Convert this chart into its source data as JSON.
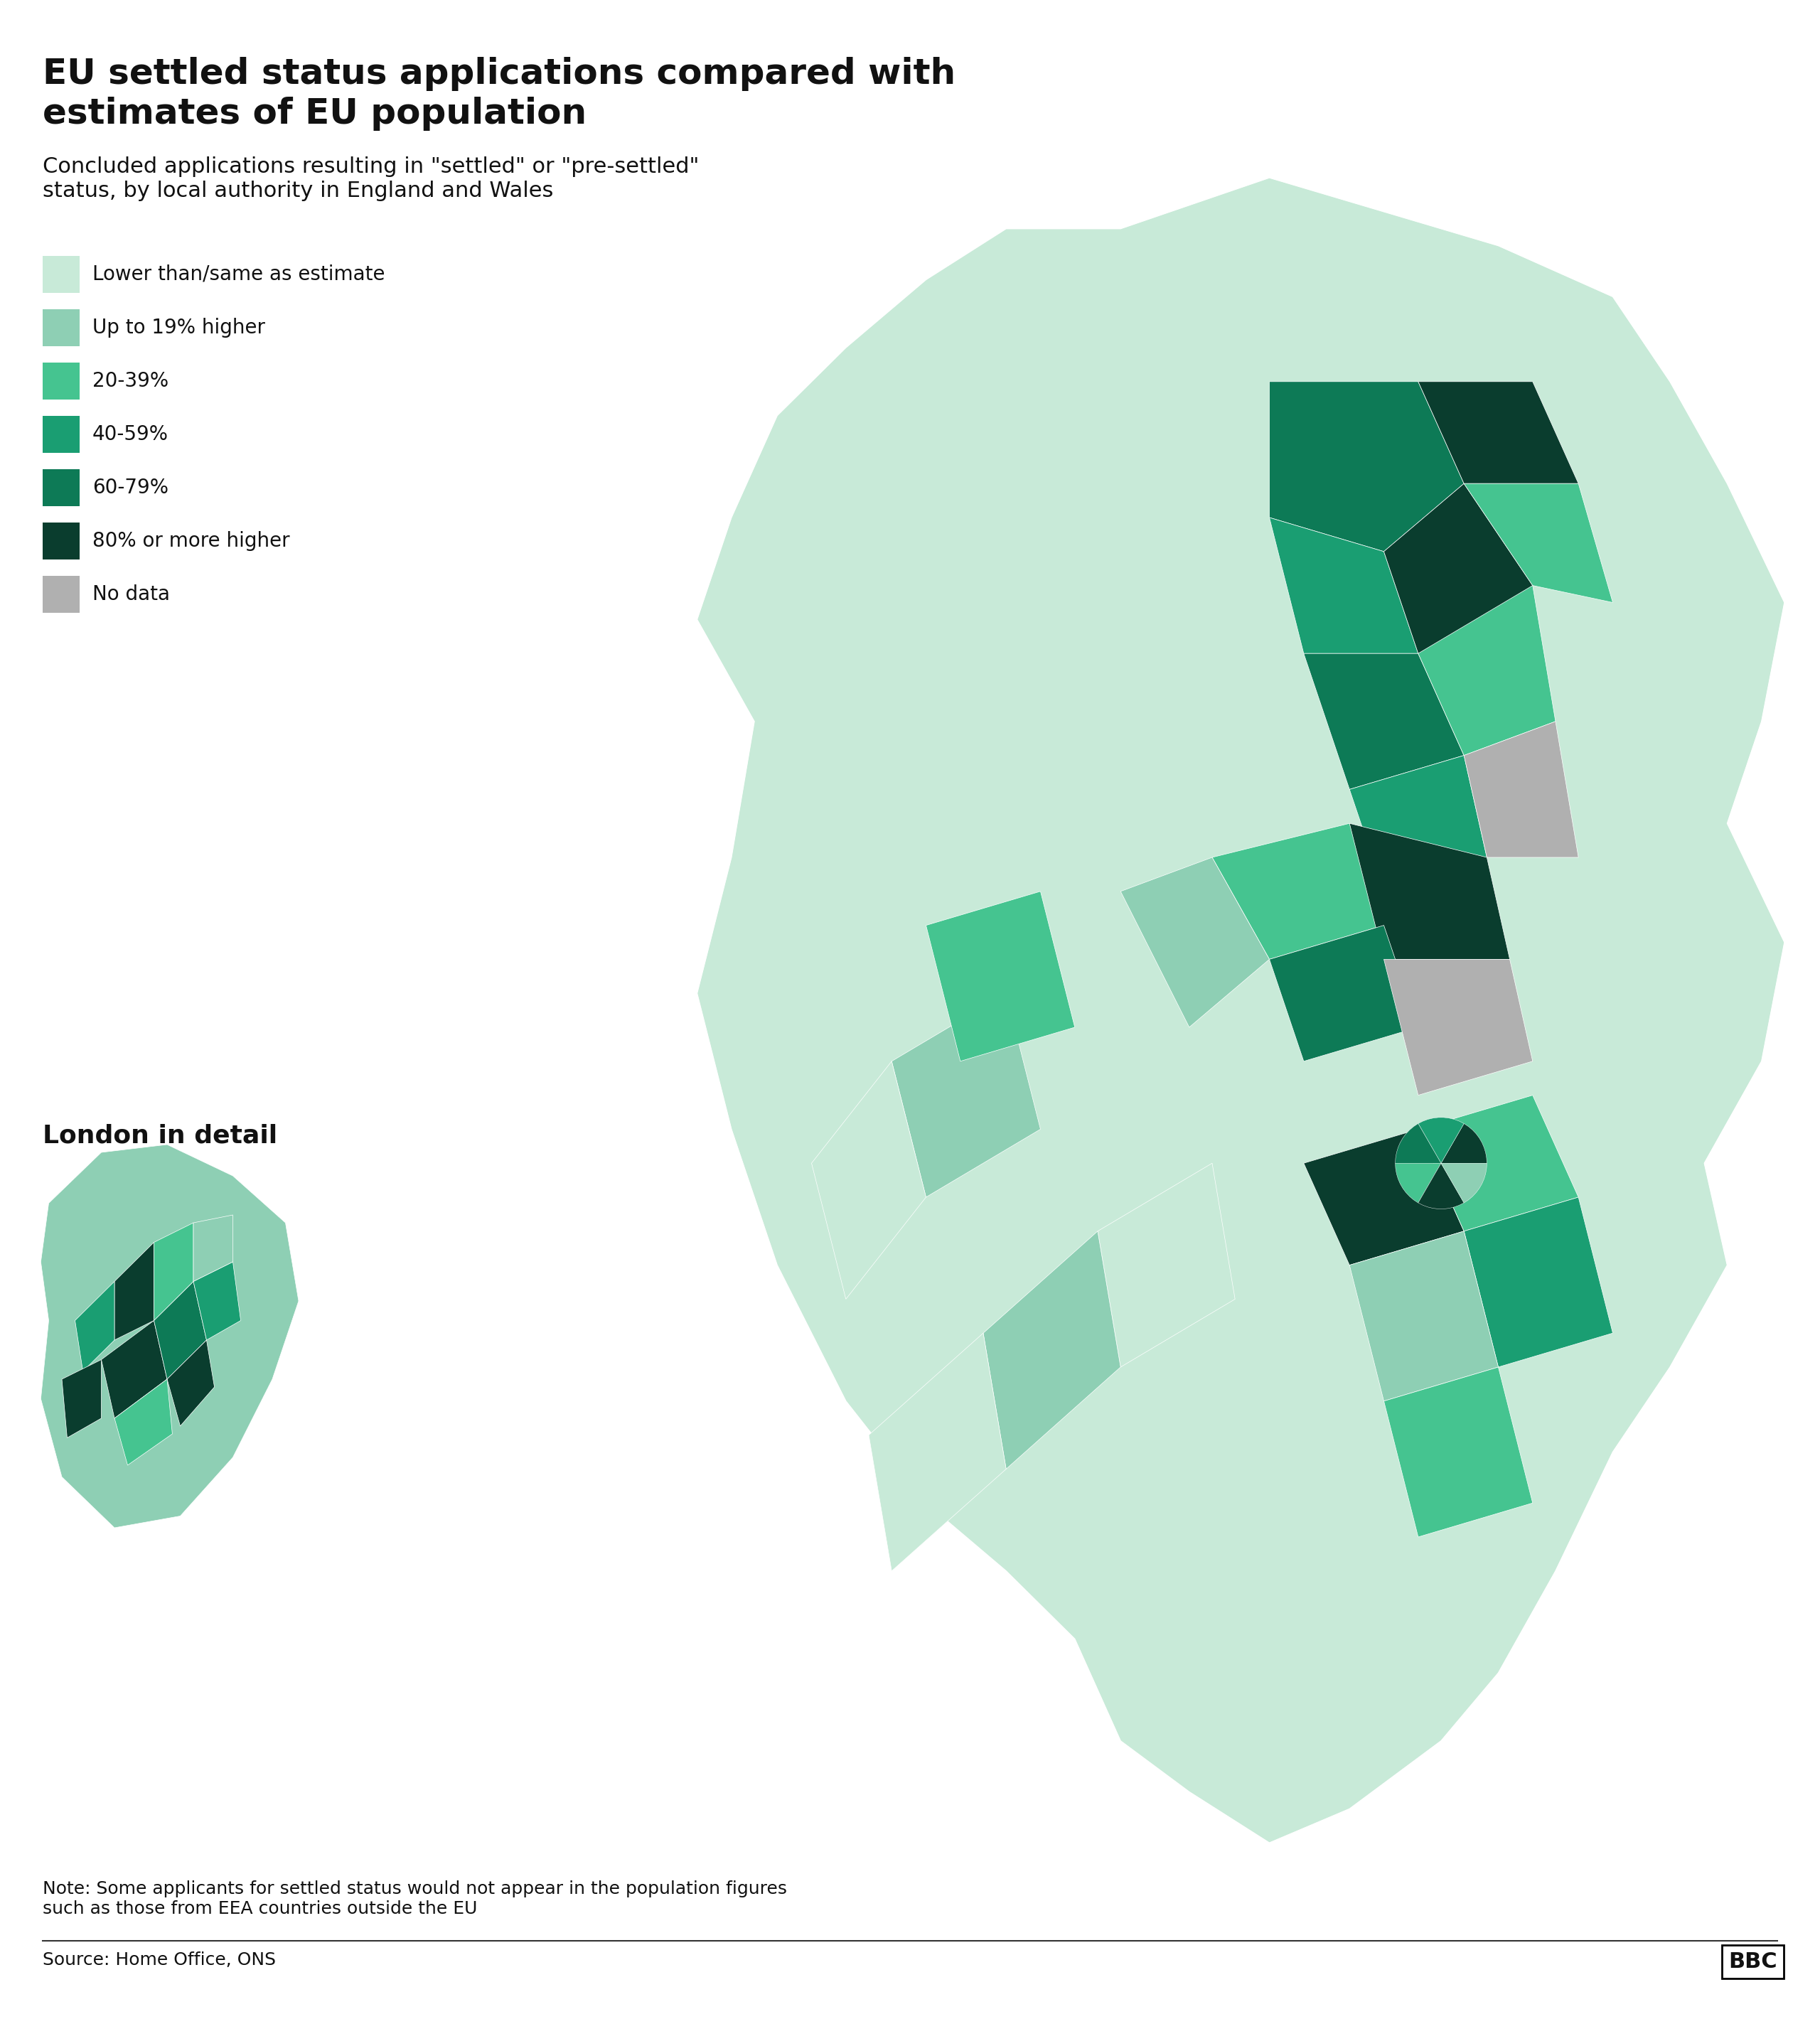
{
  "title": "EU settled status applications compared with\nestimates of EU population",
  "subtitle": "Concluded applications resulting in \"settled\" or \"pre-settled\"\nstatus, by local authority in England and Wales",
  "legend_labels": [
    "Lower than/same as estimate",
    "Up to 19% higher",
    "20-39%",
    "40-59%",
    "60-79%",
    "80% or more higher",
    "No data"
  ],
  "legend_colors": [
    "#c8ead8",
    "#8ecfb4",
    "#45c490",
    "#1a9e72",
    "#0d7a56",
    "#0a3d2e",
    "#b0b0b0"
  ],
  "london_label": "London in detail",
  "note": "Note: Some applicants for settled status would not appear in the population figures\nsuch as those from EEA countries outside the EU",
  "source": "Source: Home Office, ONS",
  "background_color": "#ffffff",
  "title_fontsize": 36,
  "subtitle_fontsize": 22,
  "legend_fontsize": 20,
  "note_fontsize": 18,
  "source_fontsize": 18
}
